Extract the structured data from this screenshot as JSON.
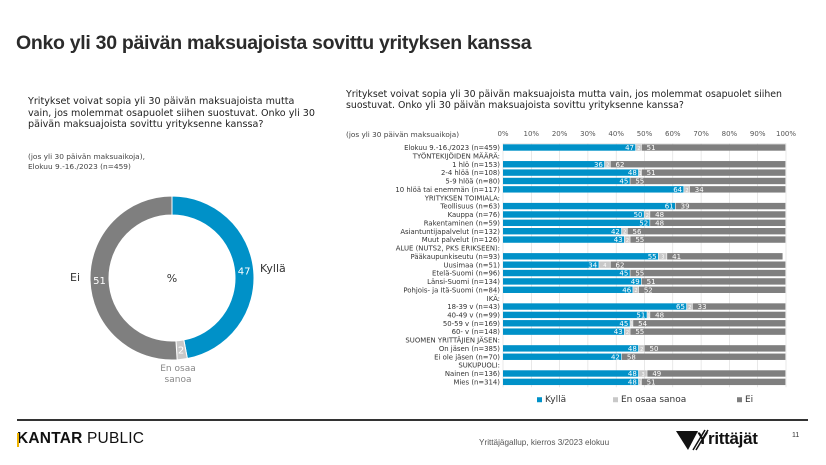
{
  "page": {
    "title": "Onko yli 30 päivän maksuajoista sovittu yrityksen kanssa",
    "left_question": "Yritykset voivat sopia yli 30 päivän maksuajoista mutta vain, jos molemmat osapuolet siihen suostuvat. Onko yli 30 päivän maksuajoista sovittu yrityksenne kanssa?",
    "left_note_1": "(jos yli 30 päivän maksuaikoja),",
    "left_note_2": "Elokuu 9.-16./2023 (n=459)",
    "right_question": "Yritykset voivat sopia yli 30 päivän maksuajoista mutta vain, jos molemmat osapuolet siihen suostuvat. Onko yli 30 päivän maksuajoista sovittu yrityksenne kanssa?",
    "right_note": "(jos yli 30 päivän maksuaikoja)",
    "footer": {
      "brand_k": "K",
      "brand_rest": "ANTAR",
      "brand_public": " PUBLIC",
      "source": "Yrittäjägallup, kierros 3/2023 elokuu",
      "logo_text": "Yrittäjät",
      "page_number": "11"
    }
  },
  "colors": {
    "kylla": "#0091c8",
    "en_osaa_sanoa": "#c8c8c8",
    "ei": "#7f7f7f",
    "grid": "#d9d9d9"
  },
  "chart_data": [
    {
      "type": "pie",
      "variant": "donut",
      "center_label": "%",
      "categories": [
        "Kyllä",
        "En osaa sanoa",
        "Ei"
      ],
      "values": [
        47,
        2,
        51
      ],
      "labels": [
        "Kyllä",
        "En osaa sanoa",
        "Ei"
      ]
    },
    {
      "type": "bar",
      "orientation": "horizontal",
      "stacked": true,
      "xlim": [
        0,
        100
      ],
      "x_ticks": [
        "0%",
        "10%",
        "20%",
        "30%",
        "40%",
        "50%",
        "60%",
        "70%",
        "80%",
        "90%",
        "100%"
      ],
      "legend": [
        "Kyllä",
        "En osaa sanoa",
        "Ei"
      ],
      "legend_position": "bottom",
      "grid": true,
      "rows": [
        {
          "label": "Elokuu 9.-16./2023 (n=459)",
          "values": [
            47,
            2,
            51
          ]
        },
        {
          "label": "TYÖNTEKIJÖIDEN MÄÄRÄ:",
          "header": true
        },
        {
          "label": "1 hlö (n=153)",
          "values": [
            36,
            2,
            62
          ]
        },
        {
          "label": "2-4 hlöä (n=108)",
          "values": [
            48,
            1,
            51
          ]
        },
        {
          "label": "5-9 hlöä (n=80)",
          "values": [
            45,
            0,
            55
          ]
        },
        {
          "label": "10 hlöä tai enemmän (n=117)",
          "values": [
            64,
            2,
            34
          ]
        },
        {
          "label": "YRITYKSEN TOIMIALA:",
          "header": true
        },
        {
          "label": "Teollisuus (n=63)",
          "values": [
            61,
            0,
            39
          ]
        },
        {
          "label": "Kauppa (n=76)",
          "values": [
            50,
            2,
            48
          ]
        },
        {
          "label": "Rakentaminen (n=59)",
          "values": [
            52,
            0,
            48
          ]
        },
        {
          "label": "Asiantuntijapalvelut (n=132)",
          "values": [
            42,
            2,
            56
          ]
        },
        {
          "label": "Muut palvelut (n=126)",
          "values": [
            43,
            2,
            55
          ]
        },
        {
          "label": "ALUE (NUTS2, PKS ERIKSEEN):",
          "header": true
        },
        {
          "label": "Pääkaupunkiseutu (n=93)",
          "values": [
            55,
            3,
            41
          ]
        },
        {
          "label": "Uusimaa (n=51)",
          "values": [
            34,
            4,
            62
          ]
        },
        {
          "label": "Etelä-Suomi (n=96)",
          "values": [
            45,
            0,
            55
          ]
        },
        {
          "label": "Länsi-Suomi (n=134)",
          "values": [
            49,
            0,
            51
          ]
        },
        {
          "label": "Pohjois- ja Itä-Suomi (n=84)",
          "values": [
            46,
            2,
            52
          ]
        },
        {
          "label": "IKÄ:",
          "header": true
        },
        {
          "label": "18-39 v (n=43)",
          "values": [
            65,
            2,
            33
          ]
        },
        {
          "label": "40-49 v (n=99)",
          "values": [
            51,
            1,
            48
          ]
        },
        {
          "label": "50-59 v (n=169)",
          "values": [
            45,
            1,
            54
          ]
        },
        {
          "label": "60- v (n=148)",
          "values": [
            43,
            2,
            55
          ]
        },
        {
          "label": "SUOMEN YRITTÄJIEN JÄSEN:",
          "header": true
        },
        {
          "label": "On jäsen (n=385)",
          "values": [
            48,
            2,
            50
          ]
        },
        {
          "label": "Ei ole jäsen (n=70)",
          "values": [
            42,
            0,
            58
          ]
        },
        {
          "label": "SUKUPUOLI:",
          "header": true
        },
        {
          "label": "Nainen (n=136)",
          "values": [
            48,
            3,
            49
          ]
        },
        {
          "label": "Mies (n=314)",
          "values": [
            48,
            1,
            51
          ]
        }
      ]
    }
  ]
}
